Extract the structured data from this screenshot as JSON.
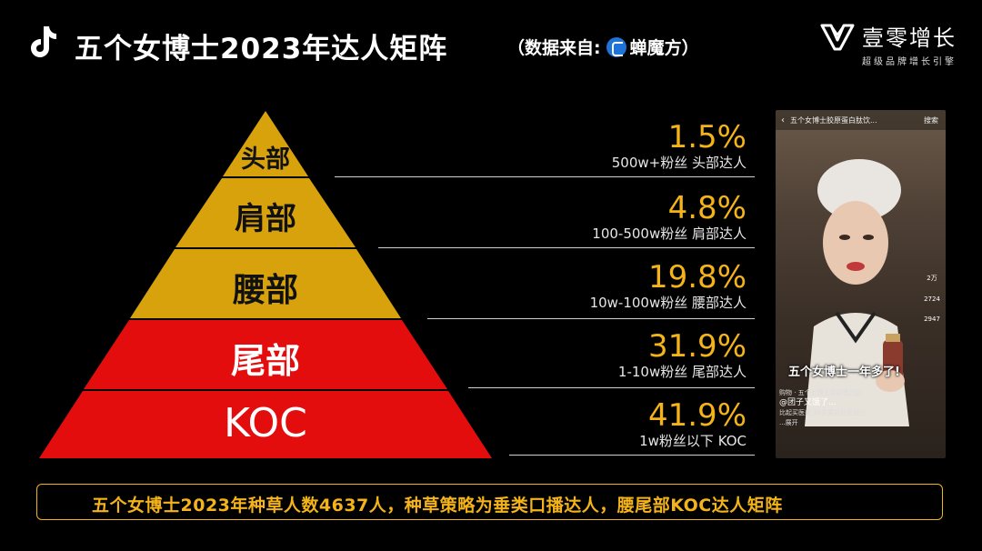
{
  "header": {
    "title": "五个女博士2023年达人矩阵",
    "source_prefix": "（数据来自:",
    "source_name": "蝉魔方",
    "source_suffix": "）",
    "brand_name": "壹零增长",
    "brand_tagline": "超级品牌增长引擎"
  },
  "tiers": [
    {
      "label": "头部",
      "percent": "1.5%",
      "fraction": 0.015,
      "desc": "500w+粉丝 头部达人",
      "color": "#d8a20d"
    },
    {
      "label": "肩部",
      "percent": "4.8%",
      "fraction": 0.048,
      "desc": "100-500w粉丝 肩部达人",
      "color": "#d8a20d"
    },
    {
      "label": "腰部",
      "percent": "19.8%",
      "fraction": 0.198,
      "desc": "10w-100w粉丝 腰部达人",
      "color": "#d8a20d"
    },
    {
      "label": "尾部",
      "percent": "31.9%",
      "fraction": 0.319,
      "desc": "1-10w粉丝 尾部达人",
      "color": "#e30d0d"
    },
    {
      "label": "KOC",
      "percent": "41.9%",
      "fraction": 0.419,
      "desc": "1w粉丝以下 KOC",
      "color": "#e30d0d"
    }
  ],
  "phone": {
    "top_title": "五个女博士胶原蛋白肽饮...",
    "search_label": "搜索",
    "caption": "五个女博士一年多了!",
    "shop_line": "购物 · 五个女博士胶原蛋白肽",
    "author": "@团子又饿了...",
    "text_line1": "比起买医美,30岁要好好爱自己",
    "text_line2": "...展开",
    "likes": "2万",
    "comments": "2724",
    "shares": "2947"
  },
  "summary": "五个女博士2023年种草人数4637人，种草策略为垂类口播达人，腰尾部KOC达人矩阵"
}
